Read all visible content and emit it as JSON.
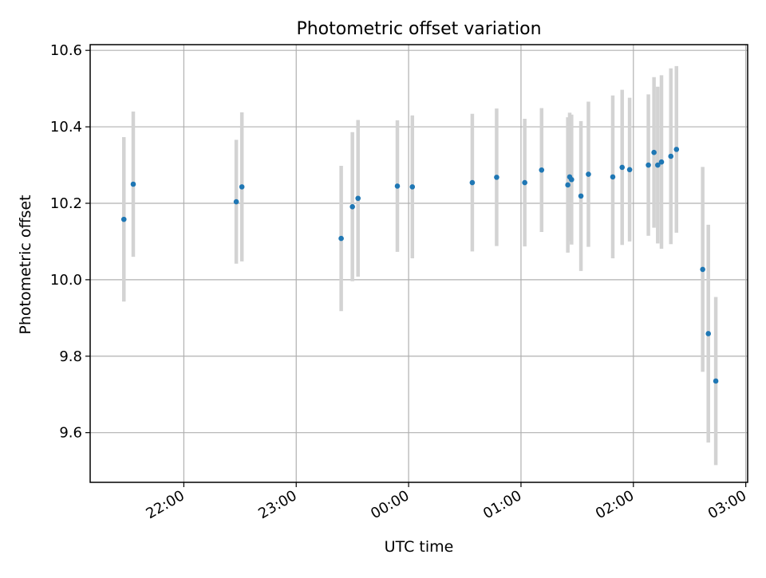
{
  "chart_data": {
    "type": "scatter",
    "title": "Photometric offset variation",
    "xlabel": "UTC time",
    "ylabel": "Photometric offset",
    "x_axis_type": "time",
    "xlim": [
      "21:10",
      "03:01"
    ],
    "ylim": [
      9.47,
      10.615
    ],
    "x_ticks": [
      "22:00",
      "23:00",
      "00:00",
      "01:00",
      "02:00",
      "03:00"
    ],
    "y_ticks": [
      "9.6",
      "9.8",
      "10.0",
      "10.2",
      "10.4",
      "10.6"
    ],
    "grid": true,
    "colors": {
      "marker": "#1f77b4",
      "errorbar": "#d3d3d3",
      "grid": "#b0b0b0"
    },
    "series": [
      {
        "points": [
          {
            "x": "21:28",
            "y": 10.158,
            "yerr": 0.215
          },
          {
            "x": "21:33",
            "y": 10.25,
            "yerr": 0.19
          },
          {
            "x": "22:28",
            "y": 10.204,
            "yerr": 0.162
          },
          {
            "x": "22:31",
            "y": 10.243,
            "yerr": 0.195
          },
          {
            "x": "23:24",
            "y": 10.108,
            "yerr": 0.19
          },
          {
            "x": "23:30",
            "y": 10.191,
            "yerr": 0.195
          },
          {
            "x": "23:33",
            "y": 10.213,
            "yerr": 0.205
          },
          {
            "x": "23:54",
            "y": 10.245,
            "yerr": 0.172
          },
          {
            "x": "00:02",
            "y": 10.243,
            "yerr": 0.187
          },
          {
            "x": "00:34",
            "y": 10.254,
            "yerr": 0.18
          },
          {
            "x": "00:47",
            "y": 10.268,
            "yerr": 0.18
          },
          {
            "x": "01:02",
            "y": 10.254,
            "yerr": 0.167
          },
          {
            "x": "01:11",
            "y": 10.287,
            "yerr": 0.162
          },
          {
            "x": "01:25",
            "y": 10.248,
            "yerr": 0.177
          },
          {
            "x": "01:26",
            "y": 10.269,
            "yerr": 0.168
          },
          {
            "x": "01:27",
            "y": 10.262,
            "yerr": 0.17
          },
          {
            "x": "01:32",
            "y": 10.219,
            "yerr": 0.196
          },
          {
            "x": "01:36",
            "y": 10.276,
            "yerr": 0.19
          },
          {
            "x": "01:49",
            "y": 10.269,
            "yerr": 0.213
          },
          {
            "x": "01:54",
            "y": 10.294,
            "yerr": 0.203
          },
          {
            "x": "01:58",
            "y": 10.288,
            "yerr": 0.188
          },
          {
            "x": "02:08",
            "y": 10.3,
            "yerr": 0.185
          },
          {
            "x": "02:11",
            "y": 10.333,
            "yerr": 0.197
          },
          {
            "x": "02:13",
            "y": 10.3,
            "yerr": 0.205
          },
          {
            "x": "02:15",
            "y": 10.308,
            "yerr": 0.227
          },
          {
            "x": "02:20",
            "y": 10.323,
            "yerr": 0.23
          },
          {
            "x": "02:23",
            "y": 10.341,
            "yerr": 0.218
          },
          {
            "x": "02:37",
            "y": 10.027,
            "yerr": 0.268
          },
          {
            "x": "02:40",
            "y": 9.859,
            "yerr": 0.285
          },
          {
            "x": "02:44",
            "y": 9.735,
            "yerr": 0.22
          }
        ]
      }
    ]
  }
}
